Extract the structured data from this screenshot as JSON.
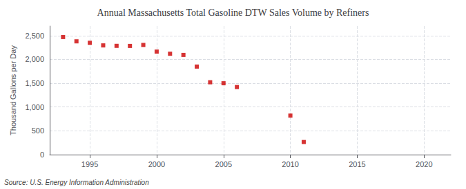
{
  "chart_data": {
    "type": "scatter",
    "title": "Annual Massachusetts Total Gasoline DTW Sales Volume by Refiners",
    "ylabel": "Thousand Gallons per Day",
    "source": "Source: U.S. Energy Information Administration",
    "x": [
      1993,
      1994,
      1995,
      1996,
      1997,
      1998,
      1999,
      2000,
      2001,
      2002,
      2003,
      2004,
      2005,
      2006,
      2010,
      2011
    ],
    "values": [
      2470,
      2380,
      2350,
      2295,
      2285,
      2283,
      2305,
      2165,
      2120,
      2095,
      1850,
      1520,
      1500,
      1420,
      820,
      265
    ],
    "color": "#cc0000",
    "marker": "square",
    "xlim": [
      1992,
      2022
    ],
    "ylim": [
      0,
      2700
    ],
    "xticks": [
      1995,
      2000,
      2005,
      2010,
      2015,
      2020
    ],
    "yticks": [
      0,
      {
        "value": 500,
        "label": "500"
      },
      {
        "value": 1000,
        "label": "1,000"
      },
      {
        "value": 1500,
        "label": "1,500"
      },
      {
        "value": 2000,
        "label": "2,000"
      },
      {
        "value": 2500,
        "label": "2,500"
      }
    ],
    "grid": true
  }
}
